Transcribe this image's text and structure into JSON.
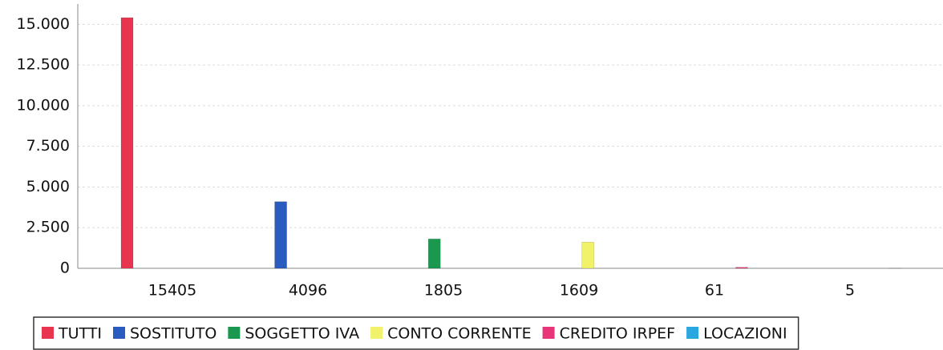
{
  "chart_data": {
    "type": "bar",
    "categories": [
      "15405",
      "4096",
      "1805",
      "1609",
      "61",
      "5"
    ],
    "series": [
      {
        "name": "TUTTI",
        "color": "#e8344e",
        "values": [
          15405,
          0,
          0,
          0,
          0,
          0
        ]
      },
      {
        "name": "SOSTITUTO",
        "color": "#2a5bbf",
        "values": [
          0,
          4096,
          0,
          0,
          0,
          0
        ]
      },
      {
        "name": "SOGGETTO IVA",
        "color": "#1a9850",
        "values": [
          0,
          0,
          1805,
          0,
          0,
          0
        ]
      },
      {
        "name": "CONTO CORRENTE",
        "color": "#f2f26a",
        "values": [
          0,
          0,
          0,
          1609,
          0,
          0
        ]
      },
      {
        "name": "CREDITO IRPEF",
        "color": "#e8357a",
        "values": [
          0,
          0,
          0,
          0,
          61,
          0
        ]
      },
      {
        "name": "LOCAZIONI",
        "color": "#2ba7e0",
        "values": [
          0,
          0,
          0,
          0,
          0,
          5
        ]
      }
    ],
    "ylim": [
      0,
      16000
    ],
    "yticks": [
      0,
      {
        "value": 2500,
        "label": "2.500"
      },
      {
        "value": 5000,
        "label": "5.000"
      },
      {
        "value": 7500,
        "label": "7.500"
      },
      {
        "value": 10000,
        "label": "10.000"
      },
      {
        "value": 12500,
        "label": "12.500"
      },
      {
        "value": 15000,
        "label": "15.000"
      }
    ],
    "grid": true,
    "legend": "bottom"
  }
}
